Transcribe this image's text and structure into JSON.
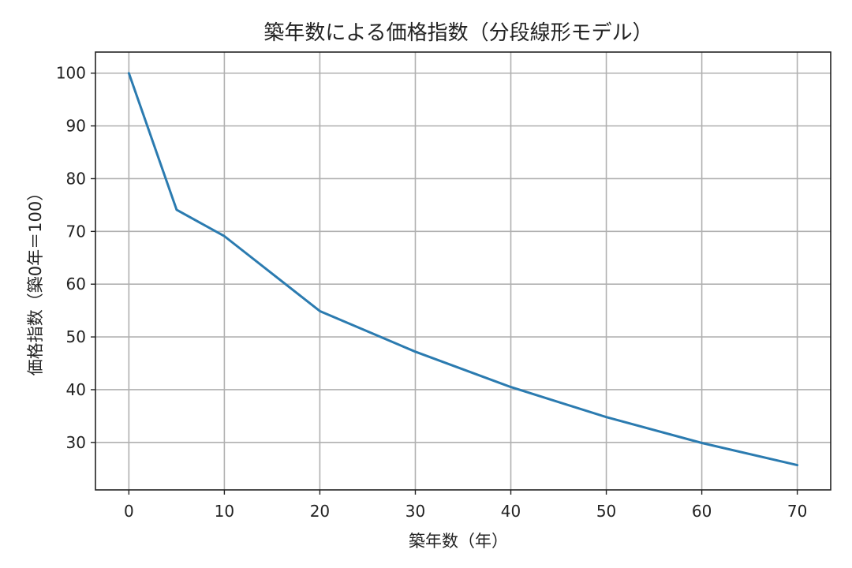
{
  "chart_data": {
    "type": "line",
    "title": "築年数による価格指数（分段線形モデル）",
    "xlabel": "築年数（年）",
    "ylabel": "価格指数（築0年＝100）",
    "xlim": [
      -3.5,
      73.5
    ],
    "ylim": [
      21,
      104
    ],
    "x_ticks": [
      0,
      10,
      20,
      30,
      40,
      50,
      60,
      70
    ],
    "y_ticks": [
      30,
      40,
      50,
      60,
      70,
      80,
      90,
      100
    ],
    "grid": true,
    "series": [
      {
        "color": "#2b7bb0",
        "x": [
          0,
          5,
          10,
          20,
          30,
          40,
          50,
          60,
          70
        ],
        "y": [
          100,
          74.1,
          69.1,
          54.9,
          47.2,
          40.5,
          34.8,
          29.9,
          25.7
        ]
      }
    ]
  }
}
